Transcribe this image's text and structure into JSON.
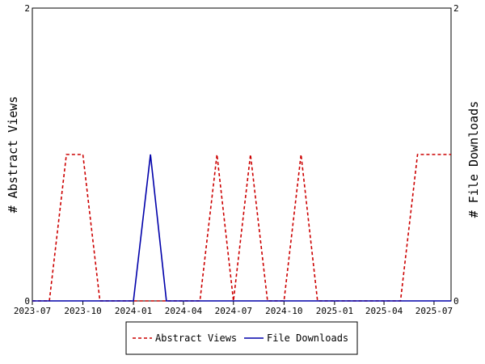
{
  "chart_data": {
    "type": "line",
    "ylabel_left": "# Abstract Views",
    "ylabel_right": "# File Downloads",
    "ylim": [
      0,
      2
    ],
    "y_ticks": [
      "0",
      "2"
    ],
    "xlim": [
      "2023-07-01",
      "2025-08-01"
    ],
    "x_ticks": [
      "2023-07",
      "2023-10",
      "2024-01",
      "2024-04",
      "2024-07",
      "2024-10",
      "2025-01",
      "2025-04",
      "2025-07"
    ],
    "x_tick_dates": [
      "2023-07-01",
      "2023-10-01",
      "2024-01-01",
      "2024-04-01",
      "2024-07-01",
      "2024-10-01",
      "2025-01-01",
      "2025-04-01",
      "2025-07-01"
    ],
    "grid": false,
    "legend_position": "bottom",
    "series": [
      {
        "name": "Abstract Views",
        "color": "#cc0000",
        "dash": "dashed",
        "axis": "left",
        "x": [
          "2023-07-01",
          "2023-08-01",
          "2023-09-01",
          "2023-10-01",
          "2023-11-01",
          "2023-12-01",
          "2024-01-01",
          "2024-02-01",
          "2024-03-01",
          "2024-04-01",
          "2024-05-01",
          "2024-06-01",
          "2024-07-01",
          "2024-08-01",
          "2024-09-01",
          "2024-10-01",
          "2024-11-01",
          "2024-12-01",
          "2025-01-01",
          "2025-02-01",
          "2025-03-01",
          "2025-04-01",
          "2025-05-01",
          "2025-06-01",
          "2025-07-01",
          "2025-08-01"
        ],
        "values": [
          0,
          0,
          1,
          1,
          0,
          0,
          0,
          0,
          0,
          0,
          0,
          1,
          0,
          1,
          0,
          0,
          1,
          0,
          0,
          0,
          0,
          0,
          0,
          1,
          1,
          1
        ]
      },
      {
        "name": "File Downloads",
        "color": "#0000aa",
        "dash": "solid",
        "axis": "right",
        "x": [
          "2023-07-01",
          "2023-08-01",
          "2023-09-01",
          "2023-10-01",
          "2023-11-01",
          "2023-12-01",
          "2024-01-01",
          "2024-02-01",
          "2024-03-01",
          "2024-04-01",
          "2024-05-01",
          "2024-06-01",
          "2024-07-01",
          "2024-08-01",
          "2024-09-01",
          "2024-10-01",
          "2024-11-01",
          "2024-12-01",
          "2025-01-01",
          "2025-02-01",
          "2025-03-01",
          "2025-04-01",
          "2025-05-01",
          "2025-06-01",
          "2025-07-01",
          "2025-08-01"
        ],
        "values": [
          0,
          0,
          0,
          0,
          0,
          0,
          0,
          1,
          0,
          0,
          0,
          0,
          0,
          0,
          0,
          0,
          0,
          0,
          0,
          0,
          0,
          0,
          0,
          0,
          0,
          0
        ]
      }
    ]
  }
}
